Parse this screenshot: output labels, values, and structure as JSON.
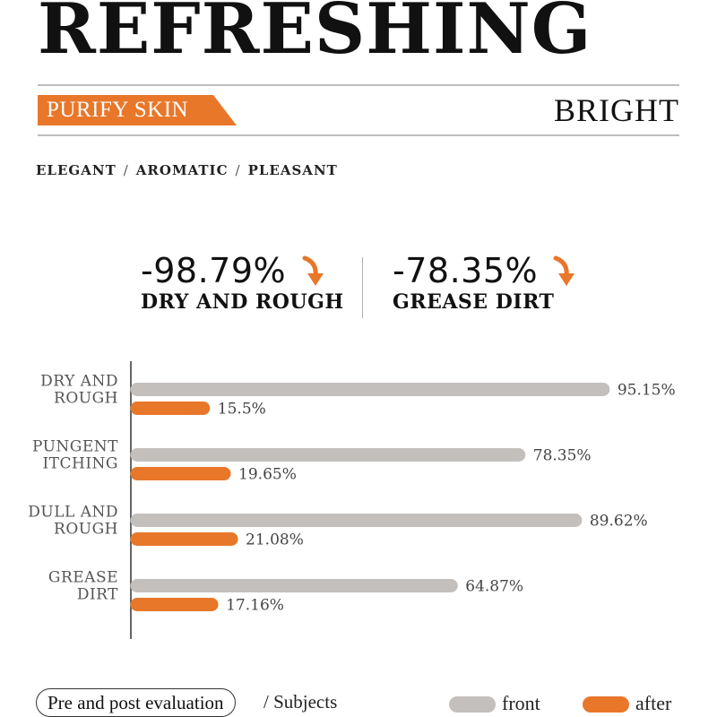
{
  "header": {
    "headline": "REFRESHING",
    "ribbon": "PURIFY SKIN",
    "right_word": "BRIGHT",
    "keywords": [
      "ELEGANT",
      "AROMATIC",
      "PLEASANT"
    ],
    "keyword_separator": "/"
  },
  "stats": [
    {
      "value": "-98.79%",
      "label": "DRY AND ROUGH"
    },
    {
      "value": "-78.35%",
      "label": "GREASE DIRT"
    }
  ],
  "colors": {
    "front": "#c3bfbd",
    "after": "#e8772a",
    "accent": "#e8772a"
  },
  "chart_data": {
    "type": "bar",
    "orientation": "horizontal",
    "categories": [
      [
        "DRY AND",
        "ROUGH"
      ],
      [
        "PUNGENT",
        "ITCHING"
      ],
      [
        "DULL AND",
        "ROUGH"
      ],
      [
        "GREASE",
        "DIRT"
      ]
    ],
    "series": [
      {
        "name": "front",
        "values": [
          95.15,
          78.35,
          89.62,
          64.87
        ],
        "labels": [
          "95.15%",
          "78.35%",
          "89.62%",
          "64.87%"
        ]
      },
      {
        "name": "after",
        "values": [
          15.5,
          19.65,
          21.08,
          17.16
        ],
        "labels": [
          "15.5%",
          "19.65%",
          "21.08%",
          "17.16%"
        ]
      }
    ],
    "xlim": [
      0,
      100
    ],
    "grid": false,
    "legend": "bottom-right"
  },
  "footer": {
    "pill": "Pre and post evaluation",
    "separator": "/",
    "subjects": "Subjects"
  },
  "legend": {
    "front": "front",
    "after": "after"
  }
}
